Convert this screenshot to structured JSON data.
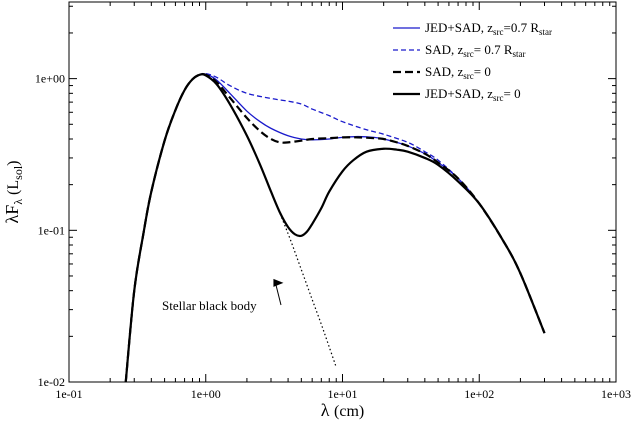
{
  "chart_data": {
    "type": "line",
    "xlabel_main": "λ",
    "xlabel_unit": "(cm)",
    "ylabel_parts": {
      "a": "λF",
      "sub1": "λ",
      "b": " (L",
      "sub2": "sol",
      "c": ")"
    },
    "x_scale": "log",
    "y_scale": "log",
    "xlim": [
      0.1,
      1000
    ],
    "ylim": [
      0.01,
      3.2
    ],
    "x_ticks": [
      {
        "value": 0.1,
        "label": "1e-01"
      },
      {
        "value": 1,
        "label": "1e+00"
      },
      {
        "value": 10,
        "label": "1e+01"
      },
      {
        "value": 100,
        "label": "1e+02"
      },
      {
        "value": 1000,
        "label": "1e+03"
      }
    ],
    "y_ticks": [
      {
        "value": 0.01,
        "label": "1e-02"
      },
      {
        "value": 0.1,
        "label": "1e-01"
      },
      {
        "value": 1,
        "label": "1e+00"
      }
    ],
    "grid": false,
    "legend_position": "top-right",
    "series": [
      {
        "key": "jed_sad_z07",
        "legend": {
          "pre": "JED+SAD, z",
          "sub1": "src",
          "mid": "=0.7 R",
          "sub2": "star"
        },
        "color": "#1a1acc",
        "style": "solid",
        "width": 1.3,
        "x": [
          0.26,
          0.3,
          0.35,
          0.4,
          0.5,
          0.6,
          0.7,
          0.8,
          0.9,
          1.0,
          1.2,
          1.5,
          2.0,
          2.5,
          3.0,
          4.0,
          5.0,
          6.0,
          8.0,
          10,
          13,
          17,
          20,
          25,
          30,
          40,
          50,
          70,
          100,
          150,
          200,
          300,
          400
        ],
        "y": [
          0.01,
          0.04,
          0.095,
          0.18,
          0.39,
          0.62,
          0.84,
          0.99,
          1.06,
          1.07,
          0.98,
          0.8,
          0.61,
          0.52,
          0.47,
          0.42,
          0.4,
          0.395,
          0.4,
          0.41,
          0.415,
          0.41,
          0.4,
          0.38,
          0.36,
          0.32,
          0.28,
          0.22,
          0.15,
          0.085,
          0.052,
          0.021,
          0.0095
        ]
      },
      {
        "key": "sad_z07",
        "legend": {
          "pre": "SAD, z",
          "sub1": "src",
          "mid": "= 0.7 R",
          "sub2": "star"
        },
        "color": "#1a1acc",
        "style": "dashed",
        "width": 1.3,
        "x": [
          0.26,
          0.3,
          0.35,
          0.4,
          0.5,
          0.6,
          0.7,
          0.8,
          0.9,
          1.0,
          1.2,
          1.5,
          2.0,
          3.0,
          4.0,
          5.0,
          6.0,
          8.0,
          10,
          15,
          20,
          30,
          40,
          50,
          70,
          100,
          150,
          200,
          300,
          400
        ],
        "y": [
          0.01,
          0.04,
          0.095,
          0.18,
          0.39,
          0.62,
          0.84,
          0.99,
          1.06,
          1.08,
          1.02,
          0.9,
          0.8,
          0.74,
          0.71,
          0.68,
          0.63,
          0.57,
          0.52,
          0.46,
          0.43,
          0.38,
          0.33,
          0.29,
          0.22,
          0.15,
          0.085,
          0.052,
          0.021,
          0.0095
        ]
      },
      {
        "key": "sad_z0",
        "legend": {
          "pre": "SAD, z",
          "sub1": "src",
          "mid": "= 0",
          "sub2": ""
        },
        "color": "#000000",
        "style": "dashed",
        "width": 2.2,
        "x": [
          0.26,
          0.3,
          0.35,
          0.4,
          0.5,
          0.6,
          0.7,
          0.8,
          0.9,
          1.0,
          1.2,
          1.5,
          2.0,
          2.5,
          3.0,
          3.5,
          4.0,
          5.0,
          6.0,
          8.0,
          10,
          13,
          17,
          20,
          25,
          30,
          40,
          50,
          70,
          100,
          150,
          200,
          300,
          400
        ],
        "y": [
          0.01,
          0.04,
          0.095,
          0.18,
          0.39,
          0.62,
          0.84,
          0.99,
          1.06,
          1.06,
          0.95,
          0.75,
          0.55,
          0.45,
          0.4,
          0.38,
          0.38,
          0.39,
          0.4,
          0.405,
          0.41,
          0.41,
          0.405,
          0.4,
          0.38,
          0.36,
          0.32,
          0.28,
          0.22,
          0.15,
          0.085,
          0.052,
          0.021,
          0.0095
        ]
      },
      {
        "key": "jed_sad_z0",
        "legend": {
          "pre": "JED+SAD, z",
          "sub1": "src",
          "mid": "= 0",
          "sub2": ""
        },
        "color": "#000000",
        "style": "solid",
        "width": 2.2,
        "x": [
          0.26,
          0.3,
          0.35,
          0.4,
          0.5,
          0.6,
          0.7,
          0.8,
          0.9,
          1.0,
          1.2,
          1.5,
          2.0,
          2.5,
          3.0,
          3.5,
          4.0,
          4.5,
          5.0,
          5.5,
          6.0,
          7.0,
          8.0,
          10,
          12,
          15,
          20,
          25,
          30,
          40,
          50,
          70,
          100,
          150,
          200,
          300,
          400
        ],
        "y": [
          0.01,
          0.04,
          0.095,
          0.18,
          0.39,
          0.62,
          0.84,
          0.99,
          1.06,
          1.05,
          0.92,
          0.68,
          0.42,
          0.27,
          0.18,
          0.13,
          0.105,
          0.094,
          0.092,
          0.098,
          0.11,
          0.14,
          0.18,
          0.245,
          0.29,
          0.33,
          0.345,
          0.34,
          0.33,
          0.3,
          0.27,
          0.21,
          0.15,
          0.085,
          0.052,
          0.021,
          0.0095
        ]
      },
      {
        "key": "stellar_bb",
        "legend": null,
        "color": "#000000",
        "style": "dotted",
        "width": 1.2,
        "x": [
          3.0,
          4.0,
          5.0,
          6.0,
          7.0,
          8.0,
          9.0,
          10.0
        ],
        "y": [
          0.18,
          0.095,
          0.055,
          0.035,
          0.024,
          0.017,
          0.0125,
          0.0095
        ]
      }
    ],
    "annotation": {
      "text": "Stellar black body",
      "arrow_to": {
        "x": 3.7,
        "y": 0.045
      }
    }
  }
}
